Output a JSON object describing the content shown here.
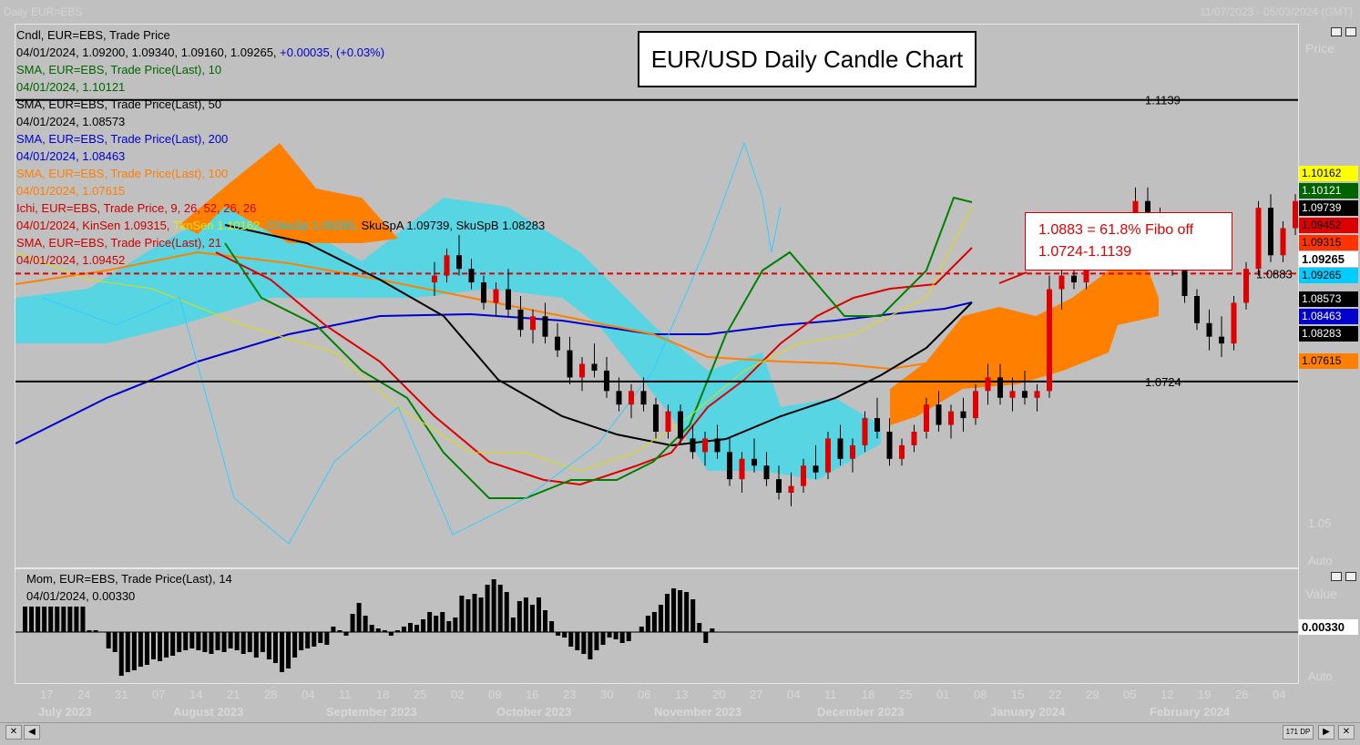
{
  "window": {
    "title_left": "Daily EUR=EBS",
    "title_right": "11/07/2023 - 05/03/2024 (GMT)"
  },
  "chart_title": "EUR/USD Daily Candle Chart",
  "fibo_note": {
    "line1": "1.0883 = 61.8% Fibo off",
    "line2": "1.0724-1.1139"
  },
  "legend": [
    {
      "text": "Cndl, EUR=EBS, Trade Price",
      "color": "#000000"
    },
    {
      "text": "04/01/2024, 1.09200, 1.09340, 1.09160, 1.09265, ",
      "color": "#000000",
      "extra": "+0.00035, (+0.03%)",
      "extra_color": "#0000cc"
    },
    {
      "text": "SMA, EUR=EBS, Trade Price(Last),  10",
      "color": "#006400"
    },
    {
      "text": "04/01/2024, 1.10121",
      "color": "#006400"
    },
    {
      "text": "SMA, EUR=EBS, Trade Price(Last),  50",
      "color": "#000000"
    },
    {
      "text": "04/01/2024, 1.08573",
      "color": "#000000"
    },
    {
      "text": "SMA, EUR=EBS, Trade Price(Last),  200",
      "color": "#0000cc"
    },
    {
      "text": "04/01/2024, 1.08463",
      "color": "#0000cc"
    },
    {
      "text": "SMA, EUR=EBS, Trade Price(Last),  100",
      "color": "#ff7f00"
    },
    {
      "text": "04/01/2024, 1.07615",
      "color": "#ff7f00"
    },
    {
      "text": "Ichi, EUR=EBS, Trade Price,  9, 26, 52, 26, 26",
      "color": "#cc0000"
    },
    {
      "text": "04/01/2024, KinSen 1.09315, ",
      "color": "#cc0000",
      "extra": "TknSen 1.10162, ",
      "extra_color": "#e8e800",
      "extra2": "ChkuSp 1.09265, ",
      "extra2_color": "#00ccff",
      "extra3": "SkuSpA 1.09739, SkuSpB 1.08283",
      "extra3_color": "#000000"
    },
    {
      "text": "SMA, EUR=EBS, Trade Price(Last),  21",
      "color": "#cc0000"
    },
    {
      "text": "04/01/2024, 1.09452",
      "color": "#cc0000"
    }
  ],
  "mom_legend": [
    "Mom, EUR=EBS, Trade Price(Last),  14",
    "04/01/2024, 0.00330"
  ],
  "right_labels": [
    {
      "text": "1.10162",
      "bg": "#ffff00",
      "fg": "#000000",
      "value": 1.10162
    },
    {
      "text": "1.10121",
      "bg": "#006400",
      "fg": "#ffffff",
      "value": 1.10121
    },
    {
      "text": "1.09739",
      "bg": "#000000",
      "fg": "#ffffff",
      "value": 1.09739
    },
    {
      "text": "1.09452",
      "bg": "#dd0000",
      "fg": "#000000",
      "value": 1.09452
    },
    {
      "text": "1.09315",
      "bg": "#ff3300",
      "fg": "#000000",
      "value": 1.09315
    },
    {
      "text": "1.09265",
      "bg": "#ffffff",
      "fg": "#000000",
      "value": 1.09265
    },
    {
      "text": "1.09265",
      "bg": "#00ccff",
      "fg": "#000000",
      "value": 1.09265
    },
    {
      "text": "1.08573",
      "bg": "#000000",
      "fg": "#ffffff",
      "value": 1.08573
    },
    {
      "text": "1.08463",
      "bg": "#0000cc",
      "fg": "#ffffff",
      "value": 1.08463
    },
    {
      "text": "1.08283",
      "bg": "#000000",
      "fg": "#ffffff",
      "value": 1.08283
    },
    {
      "text": "1.07615",
      "bg": "#ff7f00",
      "fg": "#000000",
      "value": 1.07615
    }
  ],
  "axis_faint": {
    "price": "Price",
    "auto": "Auto",
    "value": "Value",
    "auto2": "Auto",
    "p105": "1.05"
  },
  "mom_value_label": "0.00330",
  "x_ticks": [
    "17",
    "24",
    "31",
    "07",
    "14",
    "21",
    "28",
    "04",
    "11",
    "18",
    "25",
    "02",
    "09",
    "16",
    "23",
    "30",
    "06",
    "13",
    "20",
    "27",
    "04",
    "11",
    "18",
    "25",
    "01",
    "08",
    "15",
    "22",
    "29",
    "05",
    "12",
    "19",
    "26",
    "04"
  ],
  "months": [
    "July 2023",
    "August 2023",
    "September 2023",
    "October 2023",
    "November 2023",
    "December 2023",
    "January 2024",
    "February 2024"
  ],
  "scroll": {
    "label": "171 DP"
  },
  "chart_data": {
    "type": "candlestick",
    "instrument": "EUR=EBS",
    "ylim": [
      1.045,
      1.125
    ],
    "levels": [
      {
        "name": "high",
        "value": 1.1139,
        "label": "1.1139",
        "style": "solid",
        "color": "#000000"
      },
      {
        "name": "fibo_61.8",
        "value": 1.0883,
        "label": "1.0883",
        "style": "dashed",
        "color": "#e00000"
      },
      {
        "name": "low",
        "value": 1.0724,
        "label": "1.0724",
        "style": "solid",
        "color": "#000000"
      }
    ],
    "candles": [
      [
        1.087,
        1.09,
        1.085,
        1.088
      ],
      [
        1.088,
        1.092,
        1.087,
        1.091
      ],
      [
        1.091,
        1.094,
        1.088,
        1.089
      ],
      [
        1.089,
        1.0905,
        1.086,
        1.087
      ],
      [
        1.087,
        1.088,
        1.083,
        1.084
      ],
      [
        1.084,
        1.087,
        1.082,
        1.086
      ],
      [
        1.086,
        1.089,
        1.082,
        1.083
      ],
      [
        1.083,
        1.085,
        1.079,
        1.08
      ],
      [
        1.08,
        1.083,
        1.078,
        1.082
      ],
      [
        1.082,
        1.084,
        1.078,
        1.079
      ],
      [
        1.079,
        1.081,
        1.076,
        1.077
      ],
      [
        1.077,
        1.079,
        1.072,
        1.073
      ],
      [
        1.073,
        1.076,
        1.071,
        1.075
      ],
      [
        1.075,
        1.078,
        1.073,
        1.074
      ],
      [
        1.074,
        1.076,
        1.07,
        1.071
      ],
      [
        1.071,
        1.073,
        1.068,
        1.069
      ],
      [
        1.069,
        1.072,
        1.067,
        1.071
      ],
      [
        1.071,
        1.073,
        1.068,
        1.069
      ],
      [
        1.069,
        1.07,
        1.064,
        1.065
      ],
      [
        1.065,
        1.069,
        1.064,
        1.068
      ],
      [
        1.068,
        1.069,
        1.063,
        1.064
      ],
      [
        1.064,
        1.066,
        1.061,
        1.062
      ],
      [
        1.062,
        1.065,
        1.06,
        1.064
      ],
      [
        1.064,
        1.066,
        1.061,
        1.062
      ],
      [
        1.062,
        1.064,
        1.057,
        1.058
      ],
      [
        1.058,
        1.062,
        1.056,
        1.061
      ],
      [
        1.061,
        1.064,
        1.059,
        1.06
      ],
      [
        1.06,
        1.062,
        1.057,
        1.058
      ],
      [
        1.058,
        1.06,
        1.055,
        1.056
      ],
      [
        1.056,
        1.059,
        1.054,
        1.057
      ],
      [
        1.057,
        1.061,
        1.056,
        1.06
      ],
      [
        1.06,
        1.063,
        1.058,
        1.059
      ],
      [
        1.059,
        1.065,
        1.058,
        1.064
      ],
      [
        1.064,
        1.066,
        1.06,
        1.061
      ],
      [
        1.061,
        1.064,
        1.059,
        1.063
      ],
      [
        1.063,
        1.068,
        1.062,
        1.067
      ],
      [
        1.067,
        1.07,
        1.064,
        1.065
      ],
      [
        1.065,
        1.067,
        1.06,
        1.061
      ],
      [
        1.061,
        1.064,
        1.06,
        1.063
      ],
      [
        1.063,
        1.066,
        1.062,
        1.065
      ],
      [
        1.065,
        1.07,
        1.064,
        1.069
      ],
      [
        1.069,
        1.071,
        1.065,
        1.066
      ],
      [
        1.066,
        1.069,
        1.064,
        1.068
      ],
      [
        1.068,
        1.07,
        1.065,
        1.067
      ],
      [
        1.067,
        1.072,
        1.066,
        1.071
      ],
      [
        1.071,
        1.075,
        1.069,
        1.073
      ],
      [
        1.073,
        1.075,
        1.069,
        1.07
      ],
      [
        1.07,
        1.073,
        1.068,
        1.071
      ],
      [
        1.071,
        1.074,
        1.069,
        1.07
      ],
      [
        1.07,
        1.072,
        1.068,
        1.071
      ],
      [
        1.071,
        1.088,
        1.07,
        1.086
      ],
      [
        1.086,
        1.09,
        1.083,
        1.088
      ],
      [
        1.088,
        1.091,
        1.086,
        1.087
      ],
      [
        1.087,
        1.092,
        1.086,
        1.091
      ],
      [
        1.091,
        1.095,
        1.089,
        1.094
      ],
      [
        1.094,
        1.096,
        1.091,
        1.093
      ],
      [
        1.093,
        1.097,
        1.092,
        1.096
      ],
      [
        1.096,
        1.101,
        1.094,
        1.099
      ],
      [
        1.099,
        1.101,
        1.095,
        1.096
      ],
      [
        1.096,
        1.098,
        1.092,
        1.093
      ],
      [
        1.093,
        1.094,
        1.088,
        1.089
      ],
      [
        1.089,
        1.09,
        1.084,
        1.085
      ],
      [
        1.085,
        1.086,
        1.08,
        1.081
      ],
      [
        1.081,
        1.083,
        1.077,
        1.079
      ],
      [
        1.079,
        1.082,
        1.076,
        1.078
      ],
      [
        1.078,
        1.085,
        1.077,
        1.084
      ],
      [
        1.084,
        1.09,
        1.083,
        1.089
      ],
      [
        1.089,
        1.099,
        1.088,
        1.098
      ],
      [
        1.098,
        1.1,
        1.09,
        1.091
      ],
      [
        1.091,
        1.096,
        1.09,
        1.095
      ],
      [
        1.095,
        1.1,
        1.094,
        1.099
      ],
      [
        1.099,
        1.102,
        1.096,
        1.101
      ],
      [
        1.101,
        1.106,
        1.1,
        1.105
      ],
      [
        1.105,
        1.11,
        1.104,
        1.108
      ],
      [
        1.108,
        1.1139,
        1.106,
        1.112
      ],
      [
        1.112,
        1.113,
        1.104,
        1.106
      ],
      [
        1.106,
        1.108,
        1.102,
        1.104
      ],
      [
        1.104,
        1.105,
        1.096,
        1.097
      ],
      [
        1.097,
        1.098,
        1.093,
        1.094
      ],
      [
        1.092,
        1.0934,
        1.0916,
        1.09265
      ]
    ],
    "sma10_last": 1.10121,
    "sma50_last": 1.08573,
    "sma200_last": 1.08463,
    "sma100_last": 1.07615,
    "sma21_last": 1.09452,
    "momentum_last": 0.0033
  }
}
